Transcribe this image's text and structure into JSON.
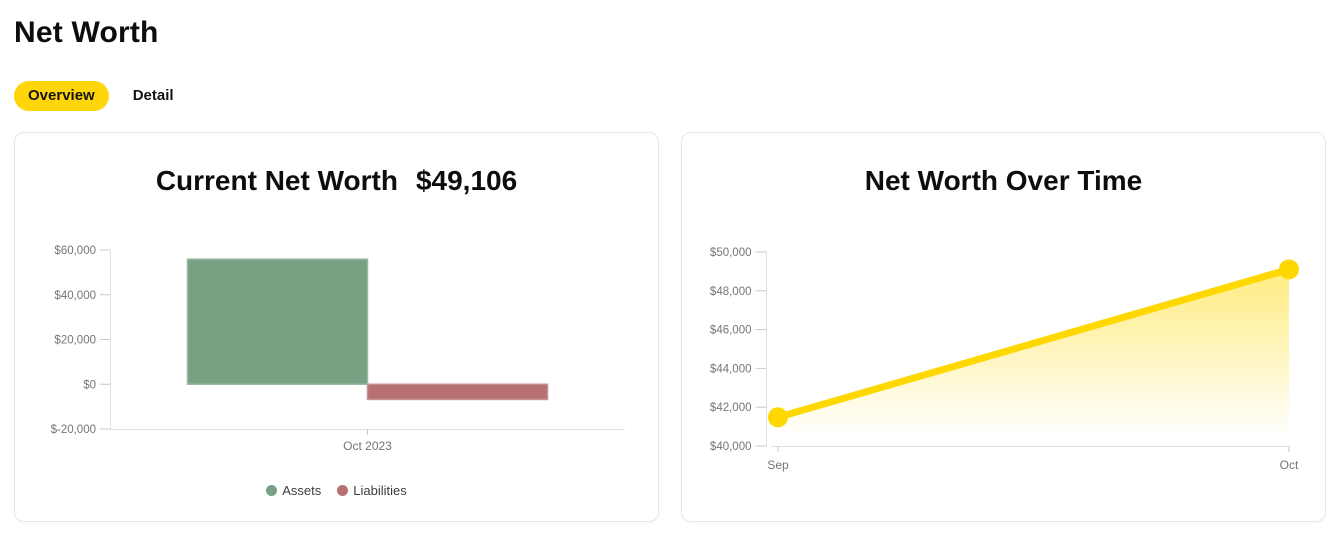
{
  "page": {
    "title": "Net Worth"
  },
  "tabs": [
    {
      "label": "Overview",
      "active": true
    },
    {
      "label": "Detail",
      "active": false
    }
  ],
  "colors": {
    "tab_active_bg": "#ffd60a",
    "assets": "#78a083",
    "assets_border": "#9bb8a0",
    "liabilities": "#b67173",
    "liabilities_border": "#c79092",
    "line": "#ffd802",
    "axis_line": "#e0e0e0",
    "tick_mark": "#c9c9c9",
    "axis_label": "#757575",
    "legend_text": "#3d3d3d"
  },
  "chart_data": [
    {
      "type": "bar",
      "title": "Current Net Worth",
      "title_value": "$49,106",
      "categories": [
        "Oct 2023"
      ],
      "series": [
        {
          "name": "Assets",
          "color": "#78a083",
          "border": "#9bb8a0",
          "values": [
            55900
          ]
        },
        {
          "name": "Liabilities",
          "color": "#b67173",
          "border": "#c79092",
          "values": [
            -6794
          ]
        }
      ],
      "ylim": [
        -20000,
        60000
      ],
      "yticks": [
        {
          "value": 60000,
          "label": "$60,000"
        },
        {
          "value": 40000,
          "label": "$40,000"
        },
        {
          "value": 20000,
          "label": "$20,000"
        },
        {
          "value": 0,
          "label": "$0"
        },
        {
          "value": -20000,
          "label": "$-20,000"
        }
      ],
      "legend_position": "bottom",
      "grid": false
    },
    {
      "type": "line",
      "title": "Net Worth Over Time",
      "x": [
        "Sep",
        "Oct"
      ],
      "series": [
        {
          "name": "Net Worth",
          "values": [
            41480,
            49106
          ]
        }
      ],
      "ylim": [
        40000,
        50000
      ],
      "yticks": [
        {
          "value": 50000,
          "label": "$50,000"
        },
        {
          "value": 48000,
          "label": "$48,000"
        },
        {
          "value": 46000,
          "label": "$46,000"
        },
        {
          "value": 44000,
          "label": "$44,000"
        },
        {
          "value": 42000,
          "label": "$42,000"
        },
        {
          "value": 40000,
          "label": "$40,000"
        }
      ],
      "area_fill": true,
      "grid": false
    }
  ]
}
